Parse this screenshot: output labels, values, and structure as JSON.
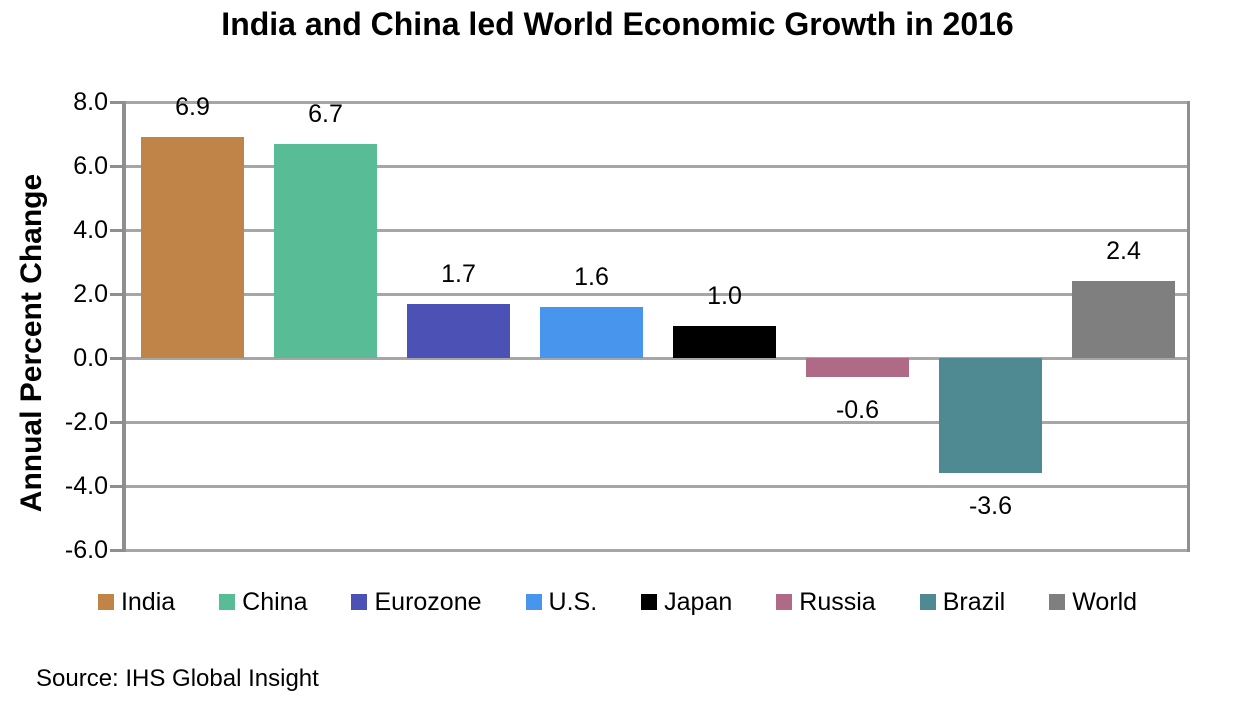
{
  "title": "India and China led World Economic Growth in 2016",
  "source_note": "Source:  IHS Global Insight",
  "colors": {
    "background": "#ffffff",
    "gridline": "#A6A6A6",
    "axis": "#8F8F8F",
    "text": "#000000"
  },
  "chart_data": {
    "type": "bar",
    "title": "India and China led World Economic Growth in 2016",
    "categories": [
      "India",
      "China",
      "Eurozone",
      "U.S.",
      "Japan",
      "Russia",
      "Brazil",
      "World"
    ],
    "values": [
      6.9,
      6.7,
      1.7,
      1.6,
      1.0,
      -0.6,
      -3.6,
      2.4
    ],
    "data_labels": [
      "6.9",
      "6.7",
      "1.7",
      "1.6",
      "1.0",
      "-0.6",
      "-3.6",
      "2.4"
    ],
    "bar_colors": [
      "#C08449",
      "#58BC97",
      "#4B51B5",
      "#4795EC",
      "#000000",
      "#AF6A87",
      "#4F8A92",
      "#7F7F7F"
    ],
    "xlabel": "",
    "ylabel": "Annual Percent Change",
    "ylim": [
      -6.0,
      8.0
    ],
    "ytick_step": 2.0,
    "ytick_labels": [
      "8.0",
      "6.0",
      "4.0",
      "2.0",
      "0.0",
      "-2.0",
      "-4.0",
      "-6.0"
    ],
    "grid": true,
    "legend_position": "bottom",
    "legend_labels": [
      "India",
      "China",
      "Eurozone",
      "U.S.",
      "Japan",
      "Russia",
      "Brazil",
      "World"
    ]
  }
}
